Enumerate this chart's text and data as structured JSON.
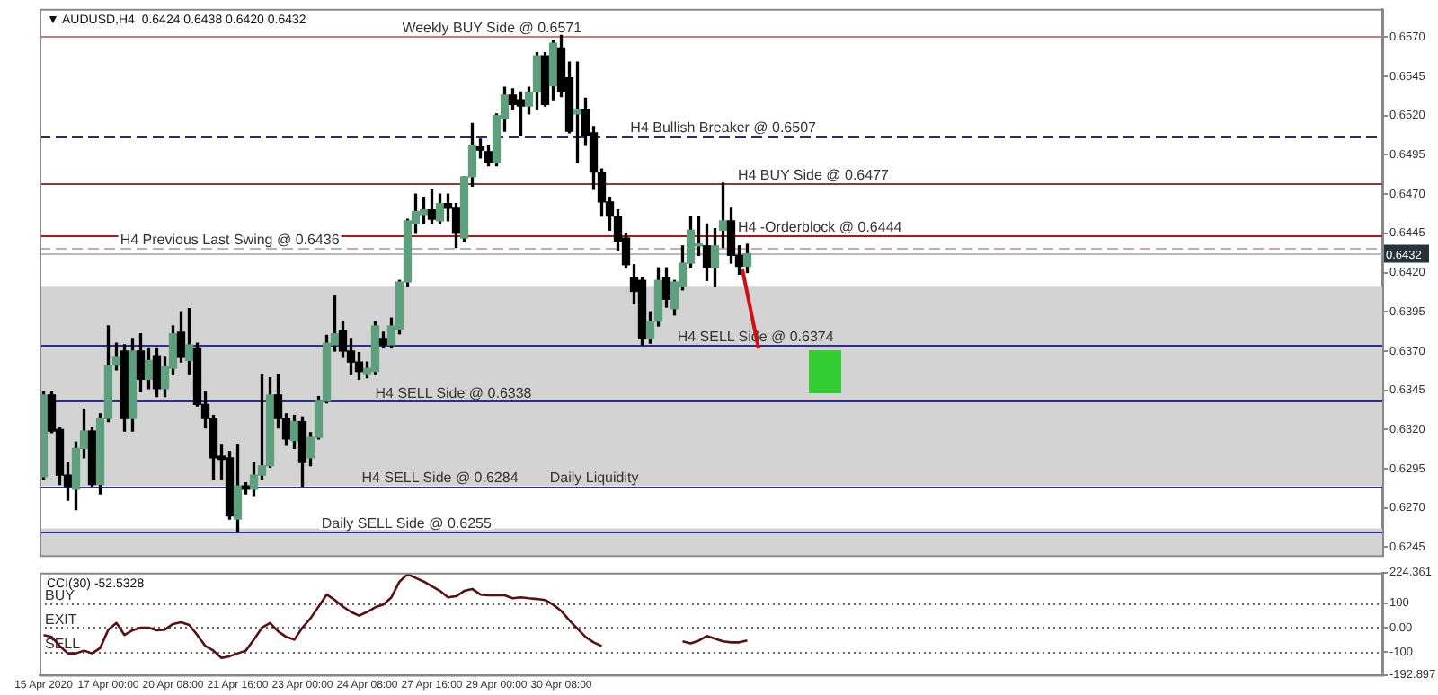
{
  "chart_data": [
    {
      "type": "candlestick",
      "title": "▼ AUDUSD,H4  0.6424 0.6438 0.6420 0.6432",
      "tick_labels": "y",
      "categories": [
        null,
        null,
        null,
        null,
        null,
        null,
        null,
        null,
        null,
        null,
        null,
        null,
        null,
        null,
        null,
        null,
        null,
        null,
        null,
        null,
        null,
        null,
        null,
        null,
        null,
        null,
        null,
        null,
        null,
        null,
        null,
        null,
        null,
        null,
        null,
        null,
        null,
        null,
        null,
        null,
        null,
        null,
        null,
        null,
        null,
        null,
        null,
        null,
        null,
        null,
        null,
        null,
        null,
        null,
        null,
        null,
        null,
        null,
        null,
        null,
        null,
        null,
        null,
        null,
        null,
        null,
        null,
        null,
        null,
        null,
        null,
        null,
        null,
        null,
        null,
        null,
        null,
        null,
        null,
        null,
        null,
        null,
        null,
        null,
        null,
        null,
        null,
        null,
        null,
        null,
        null,
        null,
        null,
        null,
        null,
        null,
        null,
        null,
        null,
        null,
        null,
        null,
        null,
        null,
        null,
        null,
        null,
        null,
        null,
        null,
        null,
        null,
        null,
        null,
        null,
        null,
        null,
        null,
        null,
        null,
        null,
        null,
        null,
        null,
        null,
        null,
        null,
        null,
        null,
        null,
        null,
        null,
        null,
        null,
        null,
        null,
        null,
        null,
        null,
        null,
        null,
        null,
        null,
        null,
        null,
        null,
        null,
        null,
        null,
        null,
        null,
        null,
        null,
        null,
        null,
        null,
        null,
        null,
        null,
        null,
        null,
        null,
        null,
        null,
        null,
        null
      ],
      "ohlc": [
        [
          0.629,
          0.6344,
          0.6288,
          0.6342
        ],
        [
          0.6342,
          0.6344,
          0.6318,
          0.6319
        ],
        [
          0.632,
          0.6321,
          0.6285,
          0.6291
        ],
        [
          0.6291,
          0.6299,
          0.6275,
          0.6284
        ],
        [
          0.6282,
          0.6312,
          0.6269,
          0.6308
        ],
        [
          0.6308,
          0.6333,
          0.6302,
          0.6319
        ],
        [
          0.6319,
          0.6321,
          0.6284,
          0.6285
        ],
        [
          0.6285,
          0.633,
          0.6279,
          0.6327
        ],
        [
          0.6327,
          0.6386,
          0.6325,
          0.6361
        ],
        [
          0.6361,
          0.6375,
          0.6358,
          0.6366
        ],
        [
          0.637,
          0.6374,
          0.6319,
          0.6327
        ],
        [
          0.6327,
          0.6378,
          0.6319,
          0.637
        ],
        [
          0.637,
          0.6381,
          0.6344,
          0.6352
        ],
        [
          0.6352,
          0.6372,
          0.6346,
          0.6364
        ],
        [
          0.6367,
          0.6372,
          0.6341,
          0.6346
        ],
        [
          0.6346,
          0.6366,
          0.6341,
          0.636
        ],
        [
          0.6359,
          0.6386,
          0.6355,
          0.6381
        ],
        [
          0.6382,
          0.6395,
          0.6363,
          0.6366
        ],
        [
          0.6364,
          0.6397,
          0.6355,
          0.6374
        ],
        [
          0.6372,
          0.6375,
          0.6335,
          0.6336
        ],
        [
          0.6336,
          0.6344,
          0.6321,
          0.6327
        ],
        [
          0.6327,
          0.6329,
          0.6288,
          0.6302
        ],
        [
          0.6303,
          0.631,
          0.6288,
          0.6301
        ],
        [
          0.6302,
          0.6306,
          0.6263,
          0.6265
        ],
        [
          0.6263,
          0.631,
          0.6255,
          0.6284
        ],
        [
          0.6284,
          0.6286,
          0.6279,
          0.6282
        ],
        [
          0.6282,
          0.6299,
          0.6278,
          0.6291
        ],
        [
          0.6291,
          0.6355,
          0.6288,
          0.6297
        ],
        [
          0.6297,
          0.6353,
          0.6296,
          0.6342
        ],
        [
          0.6342,
          0.6355,
          0.6321,
          0.6327
        ],
        [
          0.6327,
          0.633,
          0.631,
          0.6314
        ],
        [
          0.6313,
          0.6329,
          0.6308,
          0.6325
        ],
        [
          0.6325,
          0.6328,
          0.6284,
          0.6299
        ],
        [
          0.6302,
          0.6318,
          0.6297,
          0.6315
        ],
        [
          0.6315,
          0.6341,
          0.6314,
          0.6338
        ],
        [
          0.6338,
          0.638,
          0.6337,
          0.6375
        ],
        [
          0.6374,
          0.6405,
          0.637,
          0.6381
        ],
        [
          0.6383,
          0.6389,
          0.6366,
          0.637
        ],
        [
          0.637,
          0.6378,
          0.6355,
          0.6363
        ],
        [
          0.6363,
          0.6369,
          0.6352,
          0.6357
        ],
        [
          0.6355,
          0.6363,
          0.6353,
          0.6359
        ],
        [
          0.6357,
          0.6389,
          0.6355,
          0.6386
        ],
        [
          0.6378,
          0.6382,
          0.6372,
          0.6374
        ],
        [
          0.6374,
          0.6391,
          0.6372,
          0.6386
        ],
        [
          0.6384,
          0.6415,
          0.6381,
          0.6414
        ],
        [
          0.6414,
          0.6454,
          0.6411,
          0.6453
        ],
        [
          0.6451,
          0.647,
          0.6445,
          0.6459
        ],
        [
          0.6457,
          0.6468,
          0.6451,
          0.646
        ],
        [
          0.646,
          0.6473,
          0.6451,
          0.6454
        ],
        [
          0.6453,
          0.647,
          0.6451,
          0.6464
        ],
        [
          0.6464,
          0.647,
          0.6453,
          0.6461
        ],
        [
          0.6461,
          0.6464,
          0.6436,
          0.6445
        ],
        [
          0.6442,
          0.6481,
          0.644,
          0.6481
        ],
        [
          0.6481,
          0.6515,
          0.6475,
          0.6501
        ],
        [
          0.65,
          0.6505,
          0.6493,
          0.6498
        ],
        [
          0.6497,
          0.6501,
          0.6488,
          0.649
        ],
        [
          0.649,
          0.6521,
          0.6488,
          0.652
        ],
        [
          0.6518,
          0.6538,
          0.651,
          0.6533
        ],
        [
          0.6533,
          0.6537,
          0.6524,
          0.6527
        ],
        [
          0.653,
          0.6535,
          0.6507,
          0.6526
        ],
        [
          0.6526,
          0.6538,
          0.6521,
          0.6535
        ],
        [
          0.6535,
          0.656,
          0.6524,
          0.6558
        ],
        [
          0.6558,
          0.656,
          0.6526,
          0.6527
        ],
        [
          0.6539,
          0.6568,
          0.653,
          0.6566
        ],
        [
          0.6563,
          0.6571,
          0.6532,
          0.6535
        ],
        [
          0.6544,
          0.6554,
          0.6509,
          0.651
        ],
        [
          0.6521,
          0.6554,
          0.649,
          0.6524
        ],
        [
          0.6524,
          0.6531,
          0.6501,
          0.6507
        ],
        [
          0.6509,
          0.6513,
          0.6473,
          0.6484
        ],
        [
          0.6484,
          0.6486,
          0.6456,
          0.6465
        ],
        [
          0.6465,
          0.6468,
          0.6447,
          0.6456
        ],
        [
          0.6456,
          0.646,
          0.6434,
          0.644
        ],
        [
          0.6442,
          0.6445,
          0.6423,
          0.6425
        ],
        [
          0.6417,
          0.6425,
          0.64,
          0.6408
        ],
        [
          0.6415,
          0.6417,
          0.6374,
          0.6378
        ],
        [
          0.6378,
          0.6395,
          0.6375,
          0.6389
        ],
        [
          0.6389,
          0.6423,
          0.6386,
          0.6415
        ],
        [
          0.6417,
          0.6423,
          0.6398,
          0.6403
        ],
        [
          0.6397,
          0.6415,
          0.6393,
          0.6414
        ],
        [
          0.6411,
          0.6437,
          0.6409,
          0.6426
        ],
        [
          0.6426,
          0.6456,
          0.6423,
          0.6447
        ],
        [
          0.6437,
          0.6456,
          0.6431,
          0.6438
        ],
        [
          0.6437,
          0.6451,
          0.6415,
          0.6423
        ],
        [
          0.6423,
          0.6448,
          0.6411,
          0.6437
        ],
        [
          0.6447,
          0.6477,
          0.6436,
          0.6453
        ],
        [
          0.6453,
          0.6461,
          0.6426,
          0.6431
        ],
        [
          0.6431,
          0.6437,
          0.6419,
          0.6424
        ],
        [
          0.6424,
          0.6438,
          0.642,
          0.6432
        ],
        null,
        null,
        null,
        null,
        null,
        null,
        null,
        null,
        null,
        null,
        null,
        null,
        null,
        null,
        null,
        null,
        null,
        null,
        null,
        null,
        null,
        null,
        null,
        null,
        null,
        null,
        null,
        null,
        null,
        null,
        null,
        null,
        null,
        null,
        null,
        null,
        null,
        null,
        null,
        null,
        null,
        null,
        null,
        null,
        null,
        null,
        null,
        null,
        null,
        null,
        null,
        null,
        null,
        null,
        null,
        null,
        null,
        null,
        null,
        null,
        null,
        null,
        null,
        null,
        null,
        null,
        null,
        null,
        null,
        null,
        null,
        null,
        null,
        null,
        null,
        null,
        null,
        null
      ],
      "colors": [
        "#5ea07e",
        "#000000",
        "#000000",
        "#000000",
        "#5ea07e",
        "#5ea07e",
        "#000000",
        "#5ea07e",
        "#5ea07e",
        "#5ea07e",
        "#000000",
        "#5ea07e",
        "#000000",
        "#5ea07e",
        "#000000",
        "#5ea07e",
        "#5ea07e",
        "#000000",
        "#5ea07e",
        "#000000",
        "#000000",
        "#000000",
        "#000000",
        "#000000",
        "#5ea07e",
        "#000000",
        "#5ea07e",
        "#5ea07e",
        "#5ea07e",
        "#000000",
        "#000000",
        "#5ea07e",
        "#000000",
        "#5ea07e",
        "#5ea07e",
        "#5ea07e",
        "#5ea07e",
        "#000000",
        "#000000",
        "#000000",
        "#5ea07e",
        "#5ea07e",
        "#000000",
        "#5ea07e",
        "#5ea07e",
        "#5ea07e",
        "#5ea07e",
        "#5ea07e",
        "#000000",
        "#5ea07e",
        "#000000",
        "#000000",
        "#5ea07e",
        "#5ea07e",
        "#000000",
        "#000000",
        "#5ea07e",
        "#5ea07e",
        "#000000",
        "#000000",
        "#5ea07e",
        "#5ea07e",
        "#000000",
        "#5ea07e",
        "#000000",
        "#000000",
        "#5ea07e",
        "#000000",
        "#000000",
        "#000000",
        "#000000",
        "#000000",
        "#000000",
        "#000000",
        "#000000",
        "#5ea07e",
        "#5ea07e",
        "#000000",
        "#5ea07e",
        "#5ea07e",
        "#5ea07e",
        "#5ea07e",
        "#000000",
        "#5ea07e",
        "#5ea07e",
        "#000000",
        "#000000",
        "#5ea07e",
        null,
        null,
        null,
        null,
        null,
        null,
        null,
        null,
        null,
        null,
        null,
        null,
        null,
        null,
        null,
        null,
        null,
        null,
        null,
        null,
        null,
        null,
        null,
        null,
        null,
        null,
        null,
        null,
        null,
        null,
        null,
        null,
        null,
        null,
        null,
        null,
        null,
        null,
        null,
        null,
        null,
        null,
        null,
        null,
        null,
        null,
        null,
        null,
        null,
        null,
        null,
        null,
        null,
        null,
        null,
        null,
        null,
        null,
        null,
        null,
        null,
        null,
        null,
        null,
        null,
        null,
        null,
        null,
        null,
        null,
        null,
        null,
        null,
        null,
        null,
        null,
        null,
        null
      ],
      "ylim": [
        0.624,
        0.6588
      ],
      "yticks": [
        {
          "value": 0.657,
          "label": "0.6570"
        },
        0.6545,
        {
          "value": 0.652,
          "label": "0.6520"
        },
        0.6495,
        {
          "value": 0.647,
          "label": "0.6470"
        },
        0.6445,
        {
          "value": 0.642,
          "label": "0.6420"
        },
        0.6395,
        {
          "value": 0.637,
          "label": "0.6370"
        },
        0.6345,
        {
          "value": 0.632,
          "label": "0.6320"
        },
        0.6295,
        {
          "value": 0.627,
          "label": "0.6270"
        },
        0.6245
      ],
      "ref_lines": [
        {
          "axis": "y",
          "value": 0.6571,
          "label": "Weekly BUY Side @ 0.6571",
          "color": "#c77b72"
        },
        {
          "axis": "y",
          "value": 0.6507,
          "label": "H4 Bullish Breaker @ 0.6507",
          "color": "#2b2b6e",
          "line_style": "dashed"
        },
        {
          "axis": "y",
          "value": 0.6477,
          "label": "H4 BUY Side @ 0.6477",
          "color": "#8c3b3b"
        },
        {
          "axis": "y",
          "value": 0.6444,
          "label": "H4 -Orderblock @ 0.6444",
          "color": "#b01818"
        },
        {
          "axis": "y",
          "value": 0.6436,
          "label": "H4 Previous Last Swing @ 0.6436",
          "color": "#c9a9ae",
          "line_style": "dashed"
        },
        {
          "axis": "y",
          "value": 0.6374,
          "label": "H4 SELL Side @ 0.6374",
          "color": "#2d2d9a"
        },
        {
          "axis": "y",
          "value": 0.6338,
          "label": "H4 SELL Side @ 0.6338",
          "color": "#2d2d9a"
        },
        {
          "axis": "y",
          "value": 0.6284,
          "label": "H4 SELL Side @ 0.6284",
          "color": "#2d2d9a"
        },
        {
          "axis": "y",
          "value": 0.6255,
          "label": "Daily SELL Side @ 0.6255",
          "color": "#2d2d9a"
        },
        {
          "axis": "y",
          "value": 0.6432,
          "label": "0.6432",
          "color": "#b8b8b8"
        }
      ],
      "bands": [
        {
          "axis": "y",
          "from": 0.6284,
          "to": 0.6411,
          "label": "Daily Liquidity",
          "color": "#d3d3d3"
        },
        {
          "axis": "y",
          "from": 0.624,
          "to": 0.6257,
          "color": "#d3d3d3"
        }
      ]
    },
    {
      "type": "line",
      "title": "CCI(30) -52.5328",
      "marker": "none",
      "categories": [
        "15 Apr 2020",
        null,
        null,
        null,
        null,
        null,
        null,
        null,
        "17 Apr 00:00",
        null,
        null,
        null,
        null,
        null,
        null,
        null,
        "20 Apr 08:00",
        null,
        null,
        null,
        null,
        null,
        null,
        null,
        "21 Apr 16:00",
        null,
        null,
        null,
        null,
        null,
        null,
        null,
        "23 Apr 00:00",
        null,
        null,
        null,
        null,
        null,
        null,
        null,
        "24 Apr 08:00",
        null,
        null,
        null,
        null,
        null,
        null,
        null,
        "27 Apr 16:00",
        null,
        null,
        null,
        null,
        null,
        null,
        null,
        "29 Apr 00:00",
        null,
        null,
        null,
        null,
        null,
        null,
        null,
        "30 Apr 08:00",
        null,
        null,
        null,
        null,
        null,
        null,
        null,
        null,
        null,
        null,
        null,
        null,
        null,
        null,
        null,
        null,
        null,
        null,
        null,
        null,
        null,
        null,
        null,
        null,
        null,
        null,
        null,
        null,
        null,
        null,
        null,
        null,
        null,
        null,
        null,
        null,
        null,
        null,
        null,
        null,
        null,
        null,
        null,
        null,
        null,
        null,
        null,
        null,
        null,
        null,
        null,
        null,
        null,
        null,
        null,
        null,
        null,
        null,
        null,
        null,
        null,
        null,
        null,
        null,
        null,
        null,
        null,
        null,
        null,
        null,
        null,
        null,
        null,
        null,
        null,
        null,
        null,
        null,
        null,
        null,
        null,
        null,
        null,
        null,
        null,
        null,
        null,
        null,
        null,
        null,
        null,
        null,
        null,
        null,
        null,
        null,
        null,
        null,
        null,
        null,
        null
      ],
      "series": [
        {
          "color": "#5c0f0f",
          "values": [
            -30,
            -38,
            -75,
            -105,
            -105,
            -94,
            -105,
            -83,
            -8,
            19,
            -30,
            -11,
            0,
            0,
            -11,
            -8,
            15,
            22,
            11,
            -30,
            -75,
            -94,
            -124,
            -117,
            -105,
            -94,
            -49,
            0,
            19,
            -15,
            -38,
            -49,
            0,
            38,
            86,
            135,
            113,
            86,
            64,
            49,
            64,
            83,
            94,
            124,
            188,
            218,
            203,
            188,
            169,
            150,
            124,
            128,
            150,
            158,
            135,
            132,
            132,
            132,
            120,
            124,
            120,
            117,
            113,
            94,
            68,
            30,
            -4,
            -38,
            -60,
            -75,
            null,
            null,
            null,
            null,
            null,
            null,
            null,
            null,
            null,
            -56,
            -64,
            -53,
            -34,
            -45,
            -56,
            -60,
            -60,
            -52.5328,
            null,
            null,
            null,
            null,
            null,
            null,
            null,
            null,
            null,
            null,
            null,
            null,
            null,
            null,
            null,
            null,
            null,
            null,
            null,
            null,
            null,
            null,
            null,
            null,
            null,
            null,
            null,
            null,
            null,
            null,
            null,
            null,
            null,
            null,
            null,
            null,
            null,
            null,
            null,
            null,
            null,
            null,
            null,
            null,
            null,
            null,
            null,
            null,
            null,
            null,
            null,
            null,
            null,
            null,
            null,
            null,
            null,
            null,
            null,
            null,
            null,
            null,
            null,
            null,
            null,
            null,
            null,
            null,
            null,
            null,
            null,
            null,
            null,
            null,
            null,
            null,
            null,
            null
          ]
        }
      ],
      "ylim": [
        -192.897,
        224.361
      ],
      "yticks": [
        224.361,
        100,
        {
          "value": 0,
          "label": "0.00"
        },
        -100,
        -192.897
      ],
      "ref_lines": [
        {
          "axis": "y",
          "value": 100,
          "label": "BUY",
          "color": "#666666",
          "line_style": "dotted"
        },
        {
          "axis": "y",
          "value": 0,
          "label": "EXIT",
          "color": "#666666",
          "line_style": "dotted"
        },
        {
          "axis": "y",
          "value": -100,
          "label": "SELL",
          "color": "#666666",
          "line_style": "dotted"
        }
      ]
    }
  ]
}
